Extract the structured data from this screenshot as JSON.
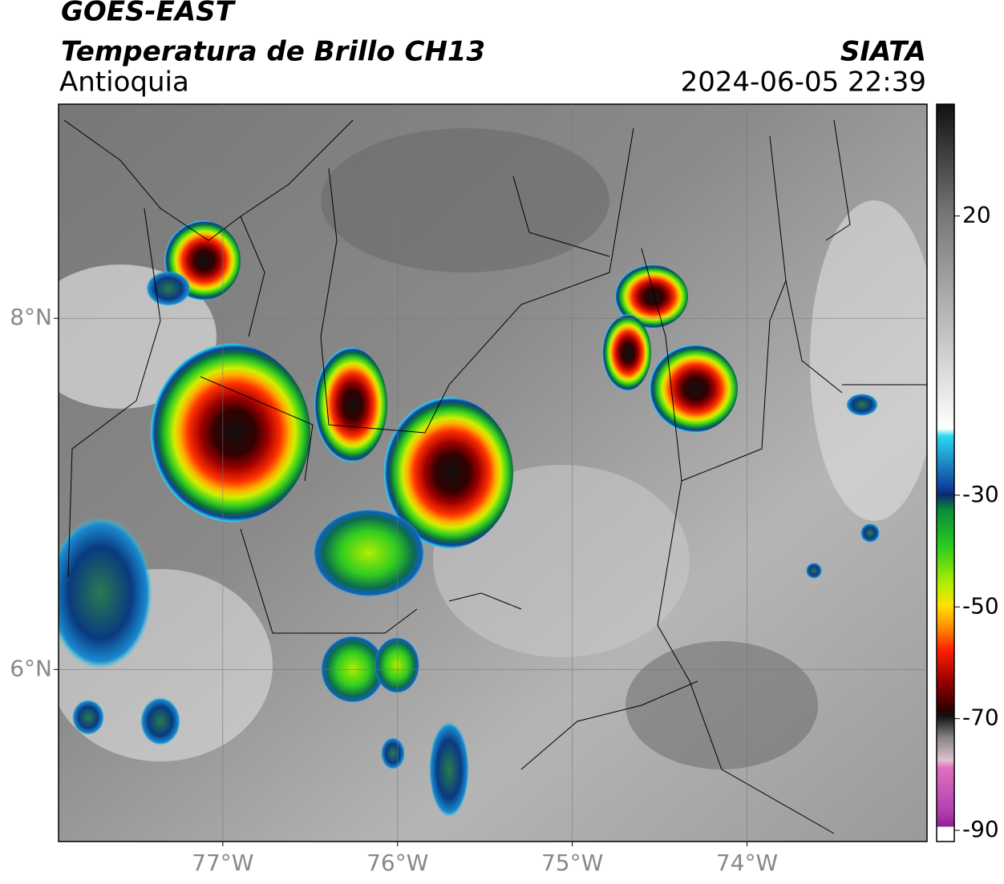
{
  "header": {
    "title": "GOES-EAST",
    "subtitle": "Temperatura de Brillo CH13",
    "region": "Antioquia",
    "source": "SIATA",
    "datetime": "2024-06-05 22:39"
  },
  "map": {
    "xlim": [
      -77.94,
      -72.97
    ],
    "ylim": [
      5.02,
      9.22
    ],
    "xticks": [
      {
        "value": -77,
        "label": "77°W"
      },
      {
        "value": -76,
        "label": "76°W"
      },
      {
        "value": -75,
        "label": "75°W"
      },
      {
        "value": -74,
        "label": "74°W"
      }
    ],
    "yticks": [
      {
        "value": 6,
        "label": "6°N"
      },
      {
        "value": 8,
        "label": "8°N"
      }
    ],
    "grid": true
  },
  "colorbar": {
    "lim": [
      40,
      -92
    ],
    "ticks": [
      20,
      -30,
      -50,
      -70,
      -90
    ]
  }
}
